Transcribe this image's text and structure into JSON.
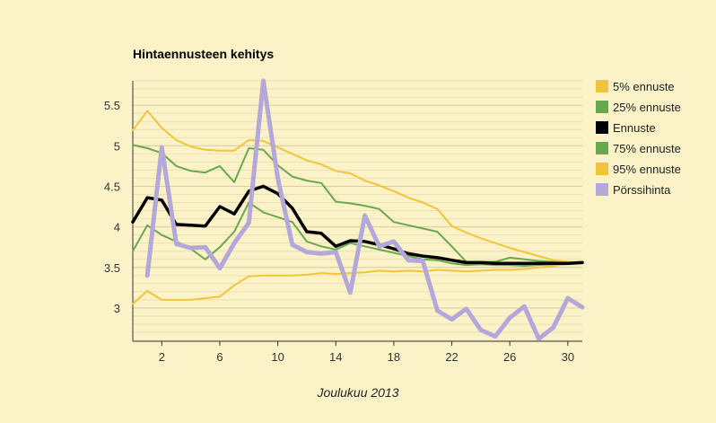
{
  "chart_data": {
    "type": "line",
    "title": "Hintaennusteen kehitys",
    "xlabel": "Joulukuu 2013",
    "ylabel": "",
    "xlim": [
      0,
      31
    ],
    "ylim": [
      2.59,
      5.8
    ],
    "x_ticks": [
      2,
      6,
      10,
      14,
      18,
      22,
      26,
      30
    ],
    "y_ticks": [
      3,
      3.5,
      4,
      4.5,
      5,
      5.5
    ],
    "y_tick_labels": [
      "3",
      "3.5",
      "4",
      "4.5",
      "5",
      "5.5"
    ],
    "grid": true,
    "legend_position": "right",
    "series": [
      {
        "name": "5% ennuste",
        "color": "#f0c53a",
        "width": 2,
        "x": [
          0,
          1,
          2,
          3,
          4,
          5,
          6,
          7,
          8,
          9,
          10,
          11,
          12,
          13,
          14,
          15,
          16,
          17,
          18,
          19,
          20,
          21,
          22,
          23,
          24,
          25,
          26,
          27,
          28,
          29,
          30,
          31
        ],
        "values": [
          3.05,
          3.21,
          3.1,
          3.1,
          3.1,
          3.12,
          3.14,
          3.28,
          3.39,
          3.4,
          3.4,
          3.4,
          3.41,
          3.43,
          3.42,
          3.43,
          3.44,
          3.46,
          3.45,
          3.46,
          3.45,
          3.47,
          3.46,
          3.45,
          3.46,
          3.47,
          3.47,
          3.48,
          3.5,
          3.52,
          3.54,
          3.55
        ]
      },
      {
        "name": "25% ennuste",
        "color": "#6aa84f",
        "width": 2,
        "x": [
          0,
          1,
          2,
          3,
          4,
          5,
          6,
          7,
          8,
          9,
          10,
          11,
          12,
          13,
          14,
          15,
          16,
          17,
          18,
          19,
          20,
          21,
          22,
          23,
          24,
          25,
          26,
          27,
          28,
          29,
          30,
          31
        ],
        "values": [
          3.7,
          4.02,
          3.9,
          3.82,
          3.73,
          3.6,
          3.75,
          3.94,
          4.3,
          4.18,
          4.12,
          4.06,
          3.82,
          3.76,
          3.72,
          3.8,
          3.76,
          3.72,
          3.68,
          3.64,
          3.6,
          3.59,
          3.55,
          3.53,
          3.54,
          3.53,
          3.53,
          3.52,
          3.53,
          3.54,
          3.55,
          3.56
        ]
      },
      {
        "name": "75% ennuste",
        "color": "#6aa84f",
        "width": 2,
        "x": [
          0,
          1,
          2,
          3,
          4,
          5,
          6,
          7,
          8,
          9,
          10,
          11,
          12,
          13,
          14,
          15,
          16,
          17,
          18,
          19,
          20,
          21,
          22,
          23,
          24,
          25,
          26,
          27,
          28,
          29,
          30,
          31
        ],
        "values": [
          5.01,
          4.97,
          4.91,
          4.75,
          4.69,
          4.67,
          4.75,
          4.55,
          4.97,
          4.95,
          4.76,
          4.62,
          4.57,
          4.54,
          4.31,
          4.29,
          4.26,
          4.22,
          4.06,
          4.02,
          3.98,
          3.94,
          3.76,
          3.57,
          3.57,
          3.57,
          3.62,
          3.6,
          3.58,
          3.57,
          3.56,
          3.57
        ]
      },
      {
        "name": "95% ennuste",
        "color": "#f0c53a",
        "width": 2,
        "x": [
          0,
          1,
          2,
          3,
          4,
          5,
          6,
          7,
          8,
          9,
          10,
          11,
          12,
          13,
          14,
          15,
          16,
          17,
          18,
          19,
          20,
          21,
          22,
          23,
          24,
          25,
          26,
          27,
          28,
          29,
          30,
          31
        ],
        "values": [
          5.19,
          5.43,
          5.22,
          5.07,
          4.99,
          4.95,
          4.94,
          4.94,
          5.07,
          5.06,
          4.98,
          4.9,
          4.82,
          4.77,
          4.69,
          4.66,
          4.57,
          4.51,
          4.44,
          4.36,
          4.3,
          4.22,
          4.01,
          3.93,
          3.86,
          3.8,
          3.74,
          3.69,
          3.64,
          3.59,
          3.57,
          3.56
        ]
      },
      {
        "name": "Ennuste",
        "color": "#000000",
        "width": 3.5,
        "x": [
          0,
          1,
          2,
          3,
          4,
          5,
          6,
          7,
          8,
          9,
          10,
          11,
          12,
          13,
          14,
          15,
          16,
          17,
          18,
          19,
          20,
          21,
          22,
          23,
          24,
          25,
          26,
          27,
          28,
          29,
          30,
          31
        ],
        "values": [
          4.06,
          4.36,
          4.33,
          4.03,
          4.02,
          4.01,
          4.25,
          4.16,
          4.44,
          4.5,
          4.41,
          4.23,
          3.94,
          3.92,
          3.76,
          3.83,
          3.82,
          3.78,
          3.73,
          3.67,
          3.64,
          3.62,
          3.59,
          3.56,
          3.56,
          3.55,
          3.55,
          3.55,
          3.55,
          3.55,
          3.55,
          3.56
        ]
      },
      {
        "name": "Pörssihinta",
        "color": "#b3a8d9",
        "width": 5,
        "x": [
          1,
          2,
          3,
          4,
          5,
          6,
          7,
          8,
          9,
          10,
          11,
          12,
          13,
          14,
          15,
          16,
          17,
          18,
          19,
          20,
          21,
          22,
          23,
          24,
          25,
          26,
          27,
          28,
          29,
          30,
          31
        ],
        "values": [
          3.4,
          4.98,
          3.79,
          3.74,
          3.75,
          3.49,
          3.8,
          4.05,
          5.8,
          4.6,
          3.78,
          3.69,
          3.67,
          3.69,
          3.19,
          4.14,
          3.76,
          3.82,
          3.59,
          3.58,
          2.97,
          2.86,
          2.99,
          2.73,
          2.65,
          2.88,
          3.02,
          2.62,
          2.76,
          3.12,
          3.01
        ]
      }
    ],
    "legend": [
      {
        "label": "5% ennuste",
        "color": "#f0c53a"
      },
      {
        "label": "25% ennuste",
        "color": "#6aa84f"
      },
      {
        "label": "Ennuste",
        "color": "#000000"
      },
      {
        "label": "75% ennuste",
        "color": "#6aa84f"
      },
      {
        "label": "95% ennuste",
        "color": "#f0c53a"
      },
      {
        "label": "Pörssihinta",
        "color": "#b3a8d9"
      }
    ]
  }
}
